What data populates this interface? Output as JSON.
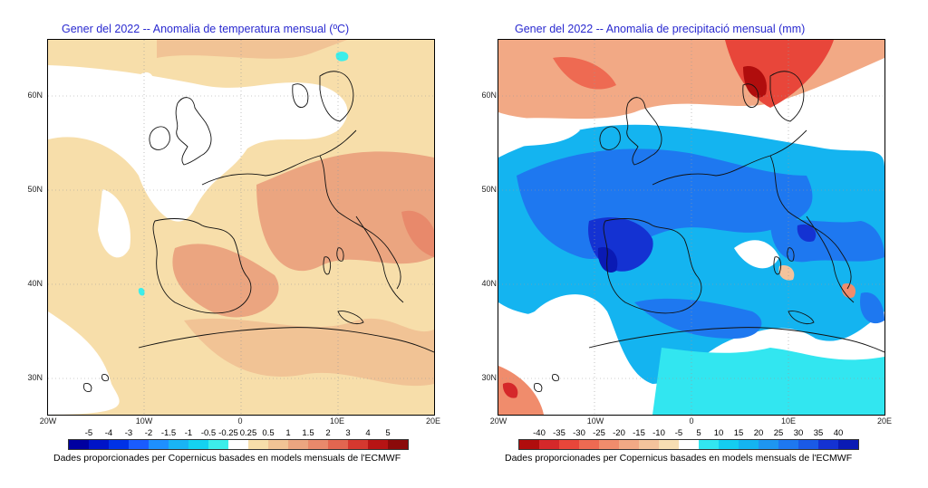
{
  "left": {
    "title": "Gener del 2022 -- Anomalia de temperatura mensual (ºC)",
    "lat_labels": [
      "60N",
      "50N",
      "40N",
      "30N"
    ],
    "lon_labels": [
      "20W",
      "10W",
      "0",
      "10E",
      "20E"
    ],
    "colorbar_labels": [
      "-5",
      "-4",
      "-3",
      "-2",
      "-1.5",
      "-1",
      "-0.5",
      "-0.25",
      "0.25",
      "0.5",
      "1",
      "1.5",
      "2",
      "3",
      "4",
      "5"
    ],
    "colorbar_colors": [
      "#0000a0",
      "#0014c8",
      "#0032e6",
      "#1a5cff",
      "#1e90ff",
      "#19b4f5",
      "#14d2f0",
      "#3ceeea",
      "#ffffff",
      "#f7deaa",
      "#f1c395",
      "#eba580",
      "#e8896b",
      "#e26650",
      "#d5382f",
      "#b71414",
      "#8b0a0a"
    ],
    "credit": "Dades proporcionades per Copernicus basades en models mensuals de l'ECMWF"
  },
  "right": {
    "title": "Gener del 2022 -- Anomalia de precipitació mensual (mm)",
    "lat_labels": [
      "60N",
      "50N",
      "40N",
      "30N"
    ],
    "lon_labels": [
      "20W",
      "10W",
      "0",
      "10E",
      "20E"
    ],
    "colorbar_labels": [
      "-40",
      "-35",
      "-30",
      "-25",
      "-20",
      "-15",
      "-10",
      "-5",
      "5",
      "10",
      "15",
      "20",
      "25",
      "30",
      "35",
      "40"
    ],
    "colorbar_colors": [
      "#b00d0d",
      "#d5282a",
      "#e8463a",
      "#ee6a52",
      "#f08c6c",
      "#f2a985",
      "#f4c39c",
      "#f7deb3",
      "#ffffff",
      "#32e6f0",
      "#14cdf0",
      "#14b4f0",
      "#1e96f0",
      "#1e78f0",
      "#1a5ae6",
      "#1432d2",
      "#0a1ab4"
    ],
    "credit": "Dades proporcionades per Copernicus basades en models mensuals de l'ECMWF"
  }
}
